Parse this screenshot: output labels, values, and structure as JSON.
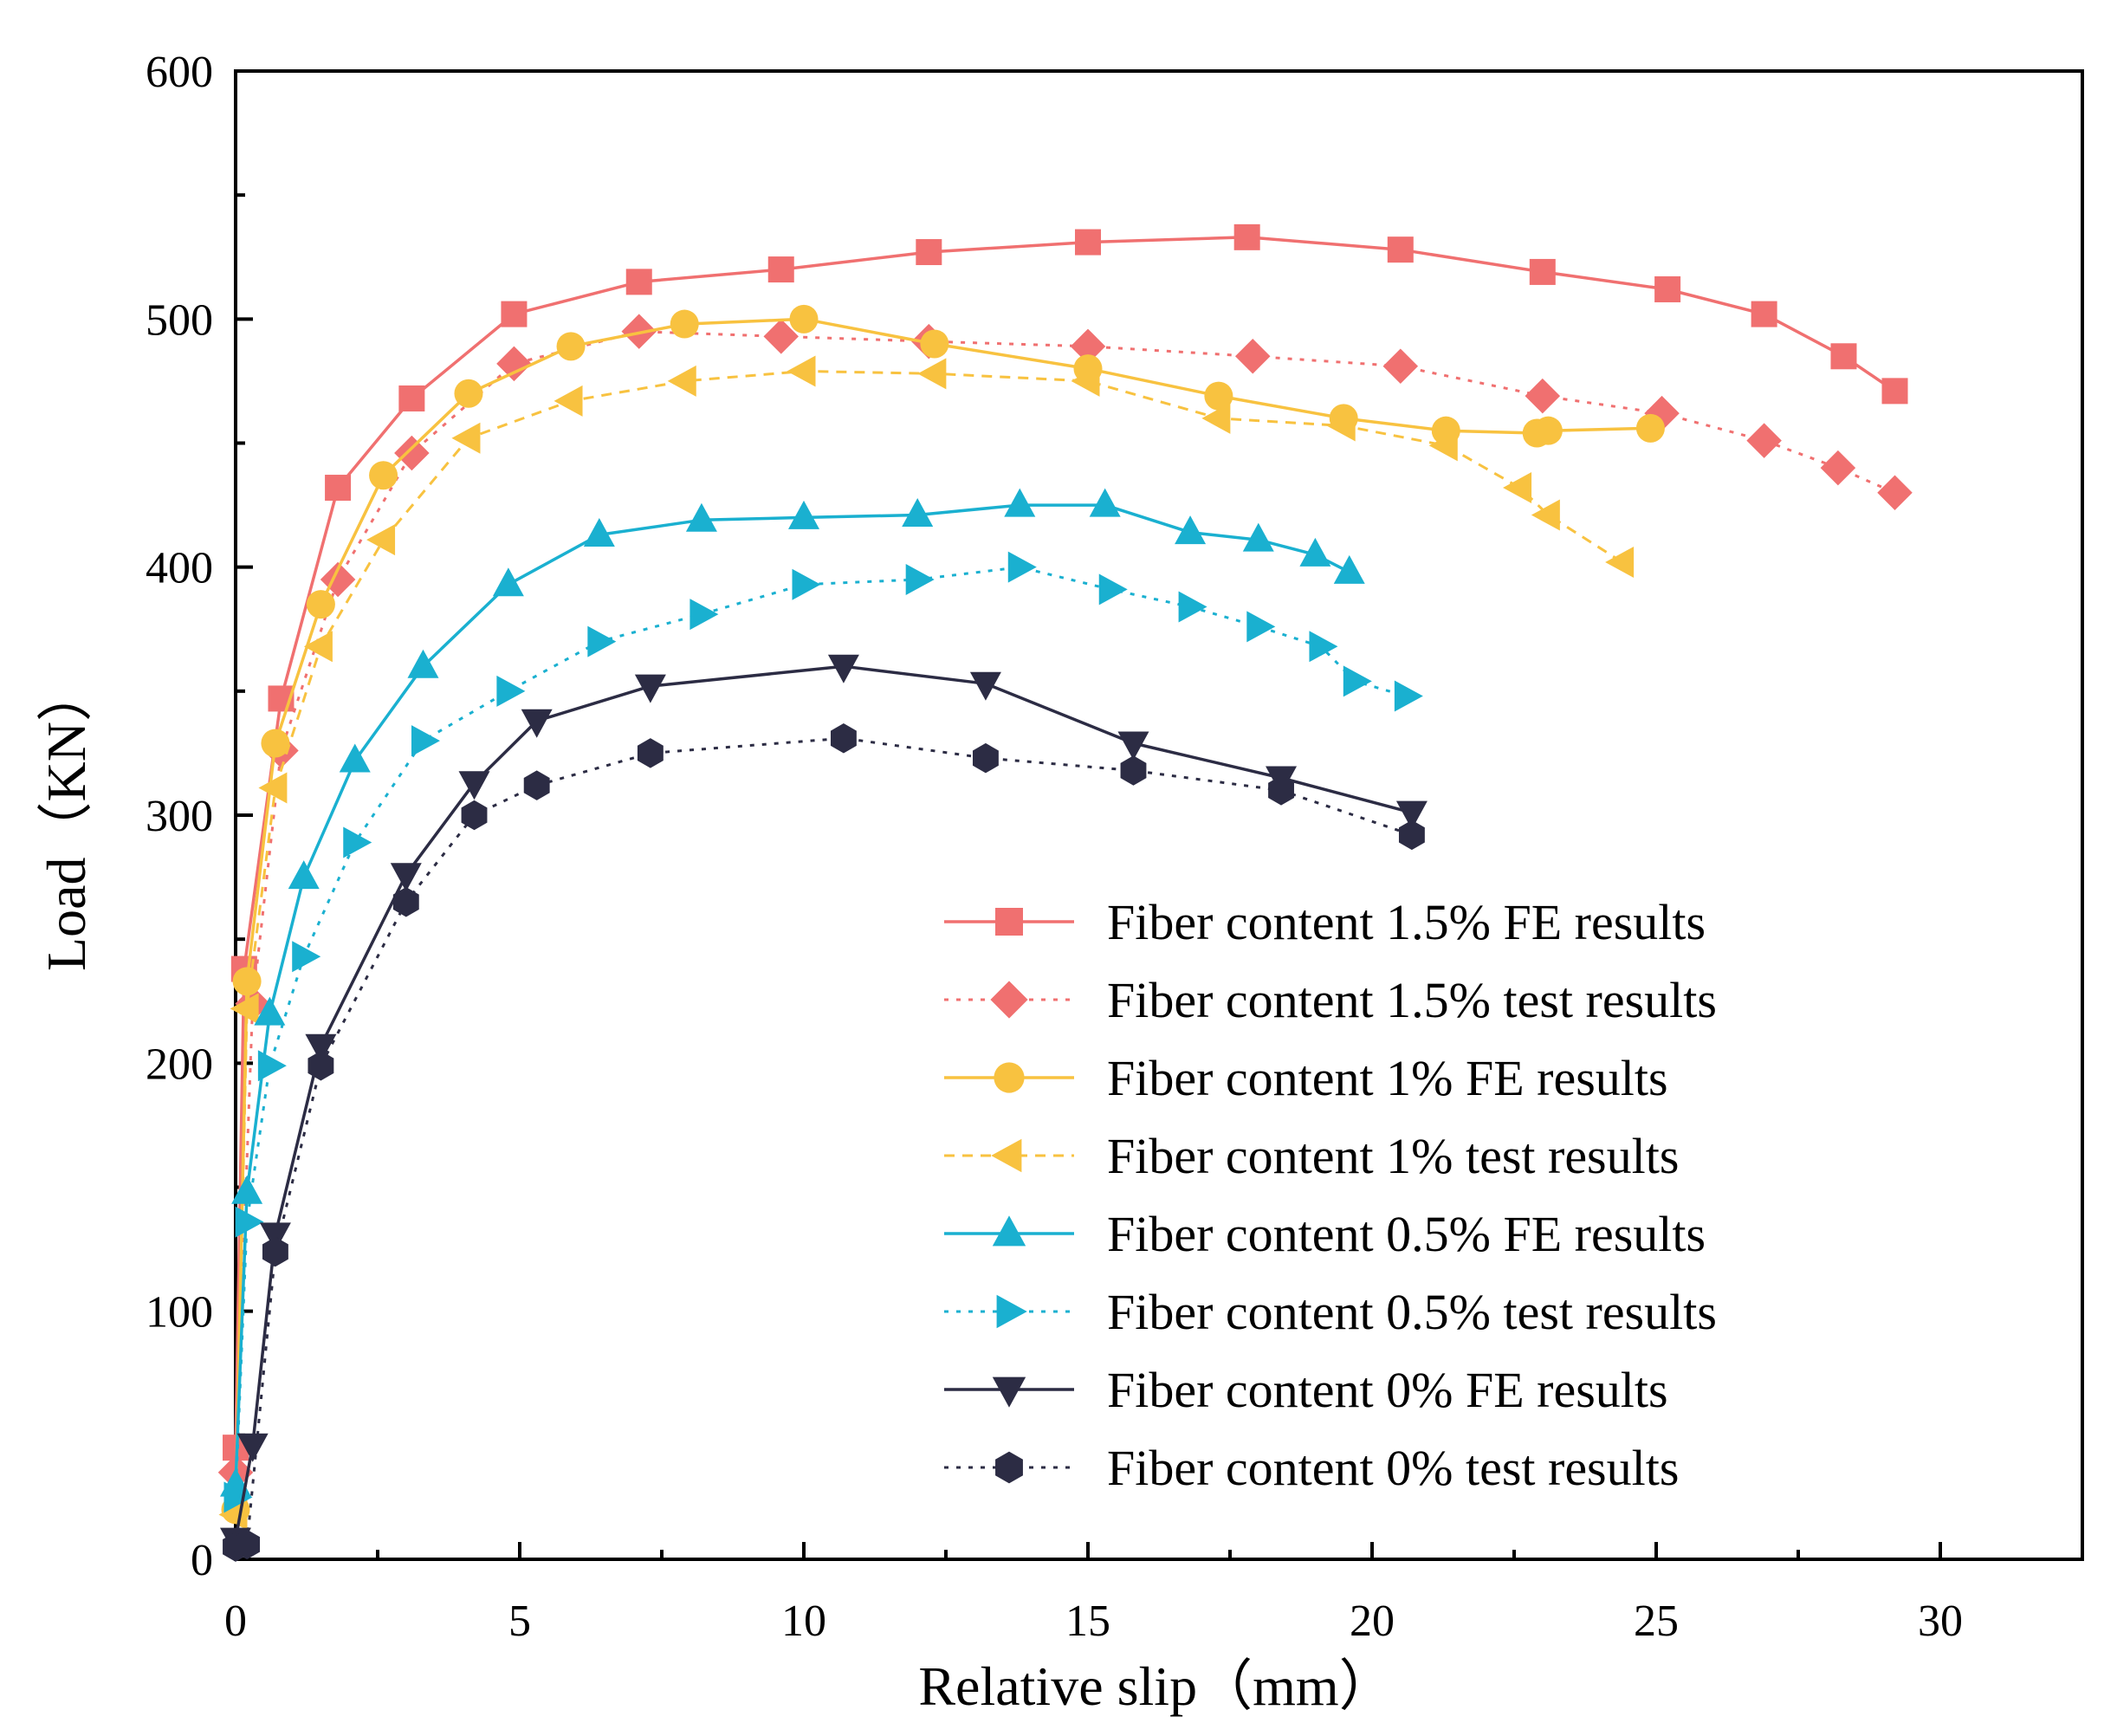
{
  "chart_data": {
    "type": "line",
    "title": "",
    "xlabel": "Relative slip（mm）",
    "ylabel": "Load（KN）",
    "xlim": [
      0,
      32.5
    ],
    "ylim": [
      0,
      600
    ],
    "xticks": [
      0,
      5,
      10,
      15,
      20,
      25,
      30
    ],
    "yticks": [
      0,
      100,
      200,
      300,
      400,
      500,
      600
    ],
    "grid": false,
    "legend_position": "bottom-right",
    "series": [
      {
        "name": "Fiber content 1.5% FE results",
        "color": "#f07070",
        "dash": "solid",
        "marker": "square",
        "x": [
          0,
          0.15,
          0.8,
          1.8,
          3.1,
          4.9,
          7.1,
          9.6,
          12.2,
          15.0,
          17.8,
          20.5,
          23.0,
          25.2,
          26.9,
          28.3,
          29.2
        ],
        "y": [
          45,
          238,
          347,
          432,
          468,
          502,
          515,
          520,
          527,
          531,
          533,
          528,
          519,
          512,
          502,
          485,
          471
        ]
      },
      {
        "name": "Fiber content 1.5% test results",
        "color": "#f07070",
        "dash": "dotted",
        "marker": "diamond",
        "x": [
          0,
          0.3,
          0.8,
          1.8,
          3.1,
          4.9,
          7.1,
          9.6,
          12.2,
          15.0,
          17.9,
          20.5,
          23.0,
          25.1,
          26.9,
          28.2,
          29.2
        ],
        "y": [
          35,
          224,
          326,
          395,
          446,
          482,
          495,
          493,
          491,
          489,
          485,
          481,
          469,
          462,
          451,
          440,
          430
        ]
      },
      {
        "name": "Fiber content 1% FE results",
        "color": "#f8c240",
        "dash": "solid",
        "marker": "circle",
        "x": [
          0,
          0.2,
          0.7,
          1.5,
          2.6,
          4.1,
          5.9,
          7.9,
          10.0,
          12.3,
          15.0,
          17.3,
          19.5,
          21.3,
          22.9,
          23.1,
          24.9
        ],
        "y": [
          20,
          233,
          329,
          385,
          437,
          470,
          489,
          498,
          500,
          490,
          480,
          469,
          460,
          455,
          454,
          455,
          456
        ]
      },
      {
        "name": "Fiber content 1% test results",
        "color": "#f8c240",
        "dash": "dashed",
        "marker": "triangle-left",
        "x": [
          0,
          0.2,
          0.7,
          1.5,
          2.6,
          4.1,
          5.9,
          7.9,
          10.0,
          12.3,
          15.0,
          17.3,
          19.5,
          21.3,
          22.6,
          23.1,
          24.4
        ],
        "y": [
          18,
          222,
          311,
          368,
          411,
          452,
          467,
          475,
          479,
          478,
          475,
          460,
          457,
          449,
          432,
          421,
          402
        ]
      },
      {
        "name": "Fiber content 0.5% FE results",
        "color": "#1ab0d0",
        "dash": "solid",
        "marker": "triangle-up",
        "x": [
          0,
          0.2,
          0.6,
          1.2,
          2.1,
          3.3,
          4.8,
          6.4,
          8.2,
          10.0,
          12.0,
          13.8,
          15.3,
          16.8,
          18.0,
          19.0,
          19.6
        ],
        "y": [
          30,
          148,
          220,
          275,
          322,
          360,
          393,
          413,
          419,
          420,
          421,
          425,
          425,
          414,
          411,
          405,
          398
        ]
      },
      {
        "name": "Fiber content 0.5% test results",
        "color": "#1ab0d0",
        "dash": "dotted",
        "marker": "triangle-right",
        "x": [
          0,
          0.2,
          0.6,
          1.2,
          2.1,
          3.3,
          4.8,
          6.4,
          8.2,
          10.0,
          12.0,
          13.8,
          15.4,
          16.8,
          18.0,
          19.1,
          19.7,
          20.6
        ],
        "y": [
          25,
          136,
          199,
          243,
          289,
          330,
          350,
          370,
          381,
          393,
          395,
          400,
          391,
          384,
          376,
          368,
          354,
          348
        ]
      },
      {
        "name": "Fiber content 0% FE results",
        "color": "#2c2c44",
        "dash": "solid",
        "marker": "triangle-down",
        "x": [
          0,
          0.3,
          0.7,
          1.5,
          3.0,
          4.2,
          5.3,
          7.3,
          10.7,
          13.2,
          15.8,
          18.4,
          20.7
        ],
        "y": [
          8,
          46,
          131,
          207,
          276,
          313,
          338,
          352,
          360,
          353,
          329,
          315,
          301
        ]
      },
      {
        "name": "Fiber content 0% test results",
        "color": "#2c2c44",
        "dash": "dotted",
        "marker": "hexagon",
        "x": [
          0,
          0.2,
          0.7,
          1.5,
          3.0,
          4.2,
          5.3,
          7.3,
          10.7,
          13.2,
          15.8,
          18.4,
          20.7
        ],
        "y": [
          5,
          6,
          124,
          199,
          265,
          300,
          312,
          325,
          331,
          323,
          318,
          310,
          292
        ]
      }
    ]
  }
}
